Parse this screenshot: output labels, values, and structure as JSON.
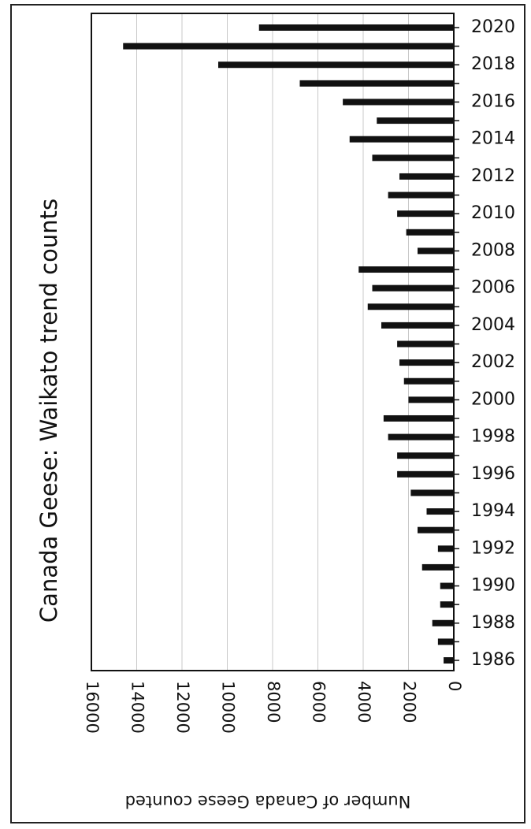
{
  "chart_data": {
    "type": "bar",
    "orientation": "horizontal",
    "title": "Canada Geese: Waikato trend counts",
    "xlabel": "Number of Canada Geese counted",
    "ylabel": "",
    "xlim": [
      0,
      16000
    ],
    "x_ticks": [
      "0",
      "2000",
      "4000",
      "6000",
      "8000",
      "10000",
      "12000",
      "14000",
      "16000"
    ],
    "year_tick_labels": [
      "1986",
      "1988",
      "1990",
      "1992",
      "1994",
      "1996",
      "1998",
      "2000",
      "2002",
      "2004",
      "2006",
      "2008",
      "2010",
      "2012",
      "2014",
      "2016",
      "2018",
      "2020"
    ],
    "categories": [
      1986,
      1987,
      1988,
      1989,
      1990,
      1991,
      1992,
      1993,
      1994,
      1995,
      1996,
      1997,
      1998,
      1999,
      2000,
      2001,
      2002,
      2003,
      2004,
      2005,
      2006,
      2007,
      2008,
      2009,
      2010,
      2011,
      2012,
      2013,
      2014,
      2015,
      2016,
      2017,
      2018,
      2019,
      2020
    ],
    "values": [
      450,
      700,
      950,
      600,
      600,
      1400,
      700,
      1600,
      1200,
      1900,
      2500,
      2500,
      2900,
      3100,
      2000,
      2200,
      2400,
      2500,
      3200,
      3800,
      3600,
      4200,
      1600,
      2100,
      2500,
      2900,
      2400,
      3600,
      4600,
      3400,
      4900,
      6800,
      10400,
      14600,
      8600
    ],
    "grid": true,
    "bar_color": "#111111"
  }
}
